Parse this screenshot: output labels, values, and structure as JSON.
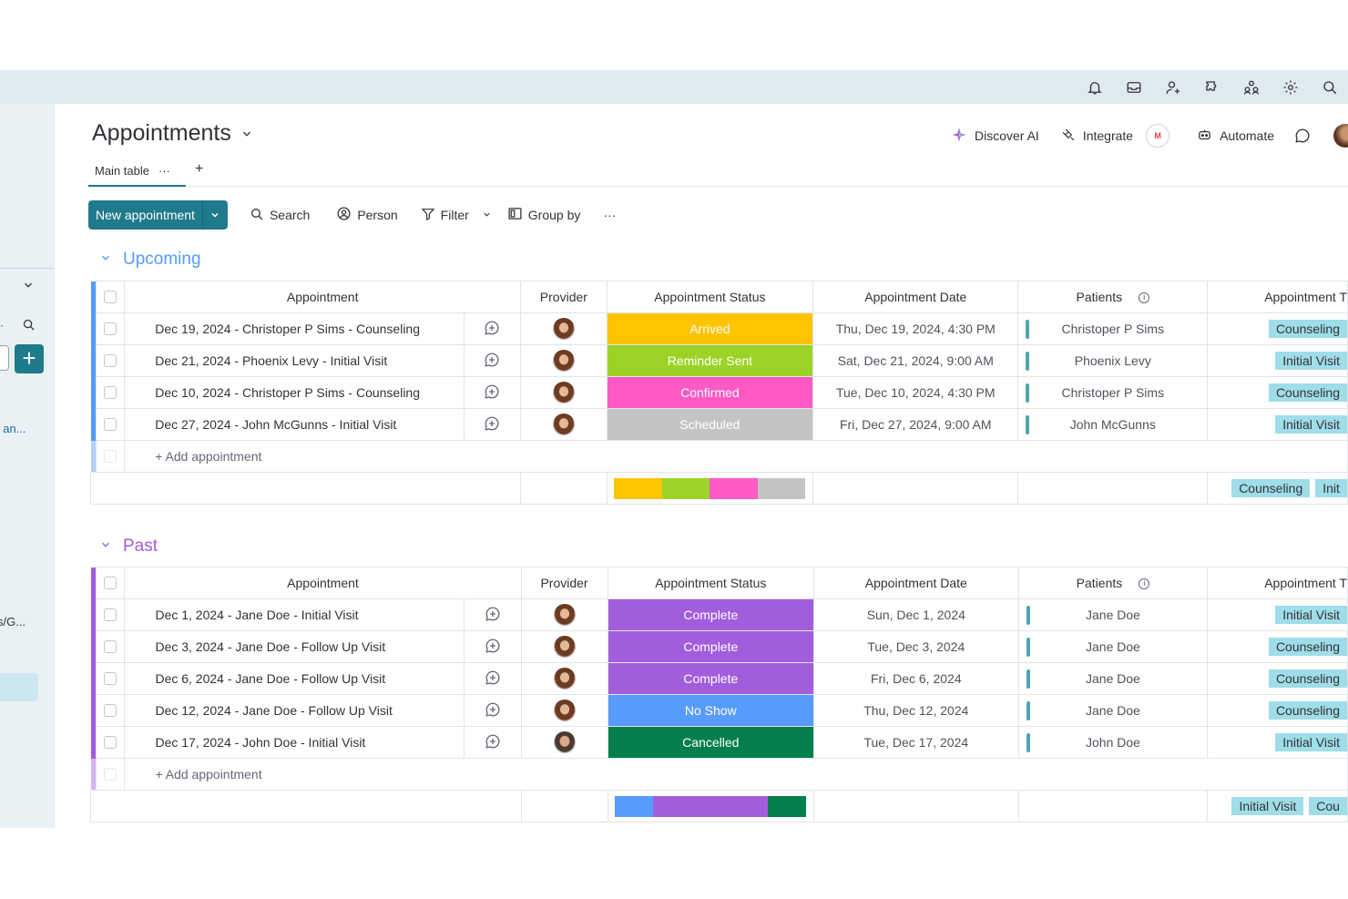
{
  "board": {
    "title": "Appointments",
    "tab_main": "Main table",
    "tab_more": "···",
    "tab_add": "+"
  },
  "header_actions": {
    "discover": "Discover AI",
    "integrate": "Integrate",
    "gmail_badge": "M",
    "automate": "Automate"
  },
  "toolbar": {
    "new_label": "New appointment",
    "search": "Search",
    "person": "Person",
    "filter": "Filter",
    "group_by": "Group by",
    "more": "···"
  },
  "sidebar": {
    "truncated_text_1": "t an...",
    "truncated_text_2": "s/G...",
    "plus": "+"
  },
  "columns": {
    "appointment": "Appointment",
    "provider": "Provider",
    "status": "Appointment Status",
    "date": "Appointment Date",
    "patients": "Patients",
    "type": "Appointment T"
  },
  "groups": {
    "upcoming": {
      "name": "Upcoming",
      "color": "#579bfc",
      "rows": [
        {
          "appointment": "Dec 19, 2024 - Christoper P Sims - Counseling",
          "status": "Arrived",
          "status_color": "#fdc400",
          "date": "Thu, Dec 19, 2024, 4:30 PM",
          "patient": "Christoper P Sims",
          "type": "Counseling"
        },
        {
          "appointment": "Dec 21, 2024 - Phoenix Levy - Initial Visit",
          "status": "Reminder Sent",
          "status_color": "#9cd326",
          "date": "Sat, Dec 21, 2024, 9:00 AM",
          "patient": "Phoenix Levy",
          "type": "Initial Visit"
        },
        {
          "appointment": "Dec 10, 2024 - Christoper P Sims - Counseling",
          "status": "Confirmed",
          "status_color": "#ff5ac4",
          "date": "Tue, Dec 10, 2024, 4:30 PM",
          "patient": "Christoper P Sims",
          "type": "Counseling"
        },
        {
          "appointment": "Dec 27, 2024 - John McGunns - Initial Visit",
          "status": "Scheduled",
          "status_color": "#c4c4c4",
          "date": "Fri, Dec 27, 2024, 9:00 AM",
          "patient": "John McGunns",
          "type": "Initial Visit"
        }
      ],
      "add_label": "+ Add appointment",
      "summary_types": [
        "Counseling",
        "Init"
      ]
    },
    "past": {
      "name": "Past",
      "color": "#a25ddc",
      "rows": [
        {
          "appointment": "Dec 1, 2024 - Jane Doe - Initial Visit",
          "status": "Complete",
          "status_color": "#a25ddc",
          "date": "Sun, Dec 1, 2024",
          "patient": "Jane Doe",
          "type": "Initial Visit"
        },
        {
          "appointment": "Dec 3, 2024 - Jane Doe - Follow Up Visit",
          "status": "Complete",
          "status_color": "#a25ddc",
          "date": "Tue, Dec 3, 2024",
          "patient": "Jane Doe",
          "type": "Counseling"
        },
        {
          "appointment": "Dec 6, 2024 - Jane Doe - Follow Up Visit",
          "status": "Complete",
          "status_color": "#a25ddc",
          "date": "Fri, Dec 6, 2024",
          "patient": "Jane Doe",
          "type": "Counseling"
        },
        {
          "appointment": "Dec 12, 2024 - Jane Doe - Follow Up Visit",
          "status": "No Show",
          "status_color": "#579bfc",
          "date": "Thu, Dec 12, 2024",
          "patient": "Jane Doe",
          "type": "Counseling"
        },
        {
          "appointment": "Dec 17, 2024 - John Doe - Initial Visit",
          "status": "Cancelled",
          "status_color": "#037f4c",
          "date": "Tue, Dec 17, 2024",
          "patient": "John Doe",
          "type": "Initial Visit"
        }
      ],
      "add_label": "+ Add appointment",
      "summary_types": [
        "Initial Visit",
        "Cou"
      ]
    }
  },
  "status_summary": {
    "upcoming": [
      {
        "color": "#fdc400",
        "share": 0.25
      },
      {
        "color": "#9cd326",
        "share": 0.25
      },
      {
        "color": "#ff5ac4",
        "share": 0.25
      },
      {
        "color": "#c4c4c4",
        "share": 0.25
      }
    ],
    "past": [
      {
        "color": "#579bfc",
        "share": 0.2
      },
      {
        "color": "#a25ddc",
        "share": 0.6
      },
      {
        "color": "#037f4c",
        "share": 0.2
      }
    ]
  },
  "icons": {
    "topbar": [
      "bell-icon",
      "inbox-icon",
      "invite-user-icon",
      "apps-icon",
      "team-icon",
      "settings-icon",
      "search-icon"
    ]
  }
}
